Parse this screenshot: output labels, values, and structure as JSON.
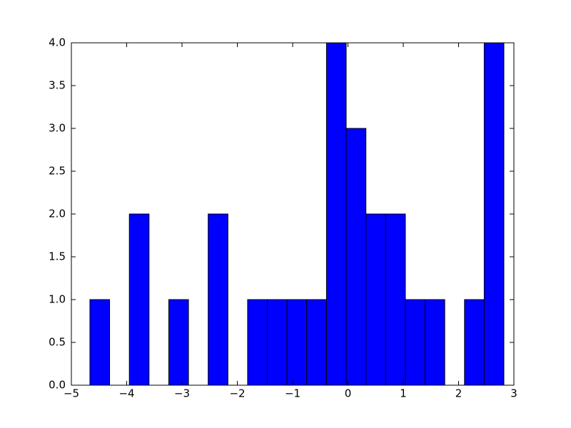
{
  "chart_data": {
    "type": "histogram",
    "bins": [
      -4.665,
      -4.309,
      -3.952,
      -3.596,
      -3.239,
      -2.883,
      -2.527,
      -2.17,
      -1.814,
      -1.457,
      -1.101,
      -0.745,
      -0.388,
      -0.032,
      0.325,
      0.681,
      1.038,
      1.394,
      1.75,
      2.107,
      2.463,
      2.819
    ],
    "values": [
      1,
      0,
      2,
      0,
      1,
      0,
      2,
      0,
      1,
      1,
      1,
      1,
      4,
      3,
      2,
      2,
      1,
      1,
      0,
      1,
      4
    ],
    "color": "#0000ff",
    "xlim": [
      -5,
      3
    ],
    "xticks": [
      {
        "value": -5,
        "label": "−5"
      },
      {
        "value": -4,
        "label": "−4"
      },
      {
        "value": -3,
        "label": "−3"
      },
      {
        "value": -2,
        "label": "−2"
      },
      {
        "value": -1,
        "label": "−1"
      },
      0,
      1,
      2,
      3
    ],
    "ylim": [
      0,
      4
    ],
    "yticks": [
      {
        "value": 0,
        "label": "0.0"
      },
      {
        "value": 0.5,
        "label": "0.5"
      },
      {
        "value": 1,
        "label": "1.0"
      },
      {
        "value": 1.5,
        "label": "1.5"
      },
      {
        "value": 2,
        "label": "2.0"
      },
      {
        "value": 2.5,
        "label": "2.5"
      },
      {
        "value": 3,
        "label": "3.0"
      },
      {
        "value": 3.5,
        "label": "3.5"
      },
      {
        "value": 4,
        "label": "4.0"
      }
    ],
    "grid": false
  }
}
